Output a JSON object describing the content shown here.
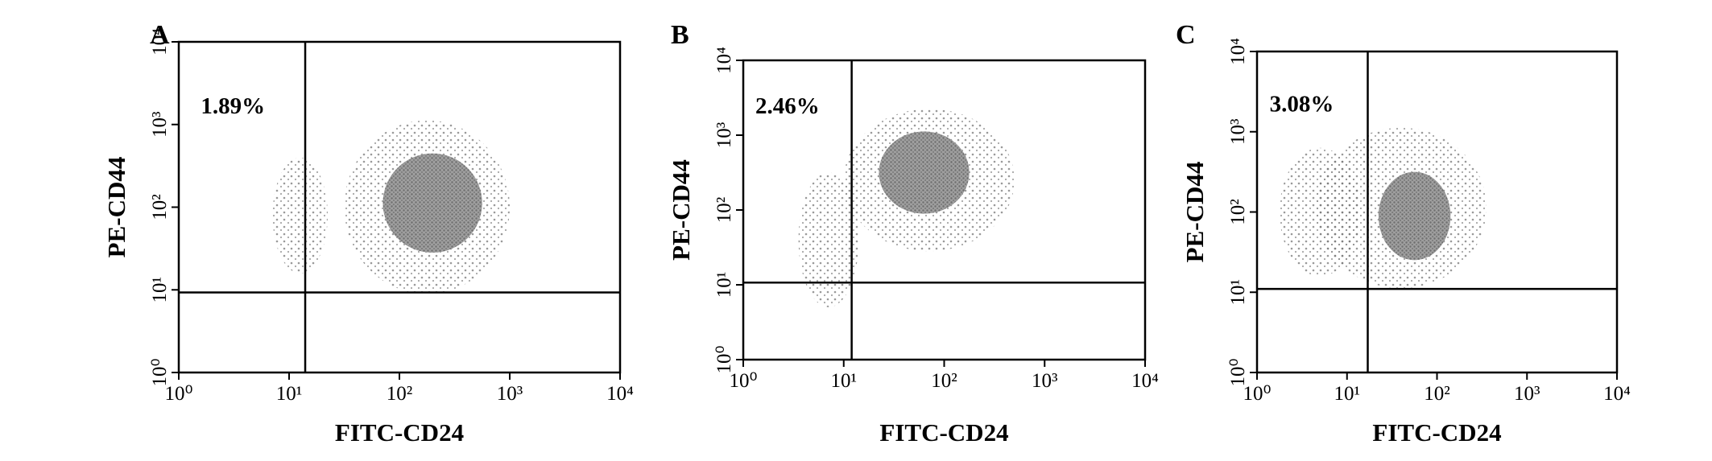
{
  "chart_data": [
    {
      "type": "scatter",
      "panel_label": "A",
      "x_label": "FITC-CD24",
      "y_label": "PE-CD44",
      "annotation": "1.89%",
      "log_scale": true,
      "xlim": [
        1,
        10000
      ],
      "ylim": [
        1,
        10000
      ],
      "xticks": [
        {
          "value": 1,
          "label": "10⁰"
        },
        {
          "value": 10,
          "label": "10¹"
        },
        {
          "value": 100,
          "label": "10²"
        },
        {
          "value": 1000,
          "label": "10³"
        },
        {
          "value": 10000,
          "label": "10⁴"
        }
      ],
      "yticks": [
        {
          "value": 1,
          "label": "10⁰"
        },
        {
          "value": 10,
          "label": "10¹"
        },
        {
          "value": 100,
          "label": "10²"
        },
        {
          "value": 1000,
          "label": "10³"
        },
        {
          "value": 10000,
          "label": "10⁴"
        }
      ],
      "gate": {
        "x": 14,
        "y": 9.3
      },
      "color": "#6e6e6e"
    },
    {
      "type": "scatter",
      "panel_label": "B",
      "x_label": "FITC-CD24",
      "y_label": "PE-CD44",
      "annotation": "2.46%",
      "log_scale": true,
      "xlim": [
        1,
        10000
      ],
      "ylim": [
        1,
        10000
      ],
      "xticks": [
        {
          "value": 1,
          "label": "10⁰"
        },
        {
          "value": 10,
          "label": "10¹"
        },
        {
          "value": 100,
          "label": "10²"
        },
        {
          "value": 1000,
          "label": "10³"
        },
        {
          "value": 10000,
          "label": "10⁴"
        }
      ],
      "yticks": [
        {
          "value": 1,
          "label": "10⁰"
        },
        {
          "value": 10,
          "label": "10¹"
        },
        {
          "value": 100,
          "label": "10²"
        },
        {
          "value": 1000,
          "label": "10³"
        },
        {
          "value": 10000,
          "label": "10⁴"
        }
      ],
      "gate": {
        "x": 12,
        "y": 10.7
      },
      "color": "#6e6e6e"
    },
    {
      "type": "scatter",
      "panel_label": "C",
      "x_label": "FITC-CD24",
      "y_label": "PE-CD44",
      "annotation": "3.08%",
      "log_scale": true,
      "xlim": [
        1,
        10000
      ],
      "ylim": [
        1,
        10000
      ],
      "xticks": [
        {
          "value": 1,
          "label": "10⁰"
        },
        {
          "value": 10,
          "label": "10¹"
        },
        {
          "value": 100,
          "label": "10²"
        },
        {
          "value": 1000,
          "label": "10³"
        },
        {
          "value": 10000,
          "label": "10⁴"
        }
      ],
      "yticks": [
        {
          "value": 1,
          "label": "10⁰"
        },
        {
          "value": 10,
          "label": "10¹"
        },
        {
          "value": 100,
          "label": "10²"
        },
        {
          "value": 1000,
          "label": "10³"
        },
        {
          "value": 10000,
          "label": "10⁴"
        }
      ],
      "gate": {
        "x": 17,
        "y": 11
      },
      "color": "#6e6e6e"
    }
  ]
}
